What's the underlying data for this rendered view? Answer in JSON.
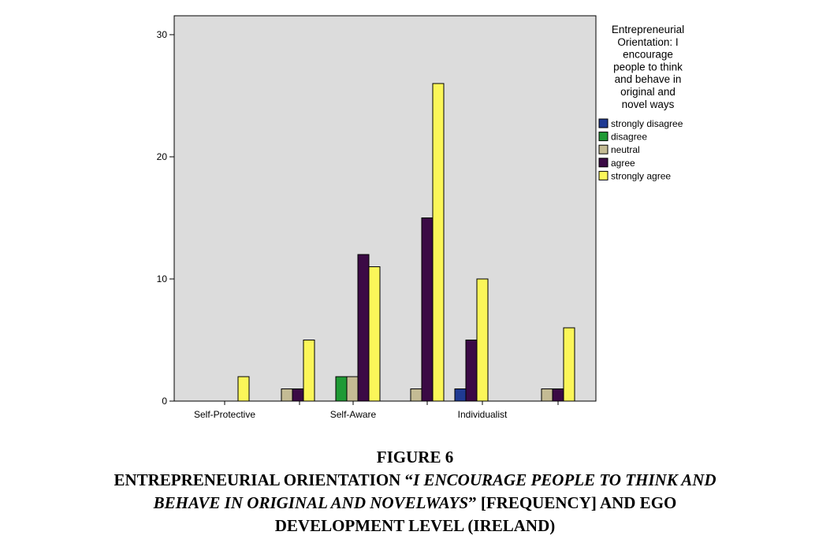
{
  "chart_data": {
    "type": "bar",
    "categories": [
      "Self-Protective",
      "",
      "Self-Aware",
      "",
      "Individualist",
      ""
    ],
    "series": [
      {
        "name": "strongly disagree",
        "color": "#1f3a93",
        "values": [
          0,
          0,
          0,
          0,
          1,
          0
        ]
      },
      {
        "name": "disagree",
        "color": "#1f9a35",
        "values": [
          0,
          0,
          2,
          0,
          0,
          0
        ]
      },
      {
        "name": "neutral",
        "color": "#c4bb94",
        "values": [
          0,
          1,
          2,
          1,
          0,
          1
        ]
      },
      {
        "name": "agree",
        "color": "#3b0a45",
        "values": [
          0,
          1,
          12,
          15,
          5,
          1
        ]
      },
      {
        "name": "strongly agree",
        "color": "#fbf659",
        "values": [
          2,
          5,
          11,
          26,
          10,
          6
        ]
      }
    ],
    "ylim": [
      0,
      30
    ],
    "yticks": [
      0,
      10,
      20,
      30
    ],
    "grid": false,
    "plot_background": "#dcdcdc",
    "legend": {
      "title_lines": [
        "Entrepreneurial",
        "Orientation: I",
        "encourage",
        "people to think",
        "and behave in",
        "original and",
        "novel ways"
      ],
      "placement": "right"
    }
  },
  "caption": {
    "figure_label": "FIGURE 6",
    "line2_a": "ENTREPRENEURIAL ORIENTATION “",
    "line2_b": "I ENCOURAGE PEOPLE TO THINK AND",
    "line3_a": "BEHAVE IN ORIGINAL AND NOVELWAYS",
    "line3_b": "” [FREQUENCY] AND EGO",
    "line4": "DEVELOPMENT LEVEL (IRELAND)"
  }
}
